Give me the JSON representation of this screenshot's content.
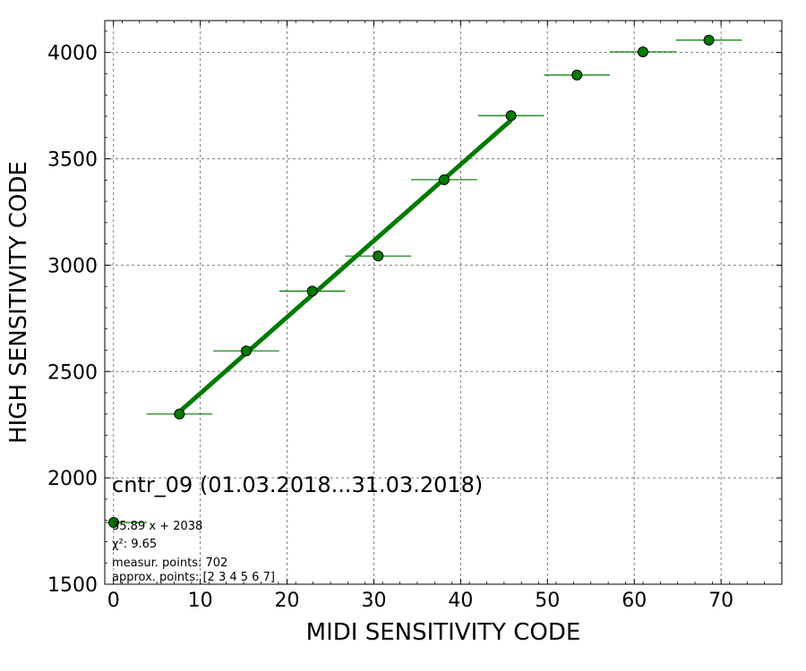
{
  "chart_data": {
    "type": "scatter",
    "title": "cntr_09 (01.03.2018...31.03.2018)",
    "xlabel": "MIDI SENSITIVITY CODE",
    "ylabel": "HIGH SENSITIVITY CODE",
    "xlim": [
      -1,
      77
    ],
    "ylim": [
      1500,
      4150
    ],
    "xticks": [
      0,
      10,
      20,
      30,
      40,
      50,
      60,
      70
    ],
    "yticks": [
      1500,
      2000,
      2500,
      3000,
      3500,
      4000
    ],
    "grid": true,
    "colors": {
      "points": "#007a00",
      "fit_line": "#007a00",
      "grid": "#808080"
    },
    "series": [
      {
        "points": [
          {
            "x": 7.6,
            "y": 2300,
            "xerr": 3.8,
            "yerr": 12
          },
          {
            "x": 15.3,
            "y": 2597,
            "xerr": 3.8,
            "yerr": 12
          },
          {
            "x": 22.9,
            "y": 2878,
            "xerr": 3.8,
            "yerr": 14
          },
          {
            "x": 30.5,
            "y": 3043,
            "xerr": 3.8,
            "yerr": 20
          },
          {
            "x": 38.1,
            "y": 3402,
            "xerr": 3.8,
            "yerr": 20
          },
          {
            "x": 45.8,
            "y": 3703,
            "xerr": 3.8,
            "yerr": 25
          },
          {
            "x": 53.4,
            "y": 3894,
            "xerr": 3.8,
            "yerr": 10
          },
          {
            "x": 61.0,
            "y": 4003,
            "xerr": 3.8,
            "yerr": 8
          },
          {
            "x": 68.6,
            "y": 4058,
            "xerr": 3.8,
            "yerr": 8
          }
        ]
      }
    ],
    "fit_line": {
      "slope": 35.89,
      "intercept": 2038,
      "x_range": [
        7.6,
        45.8
      ]
    },
    "legend": {
      "placement": "lower-left",
      "lines": [
        "35.89 x + 2038",
        "χ²: 9.65",
        "measur. points: 702",
        "approx. points: [2 3 4 5 6 7]"
      ]
    }
  }
}
